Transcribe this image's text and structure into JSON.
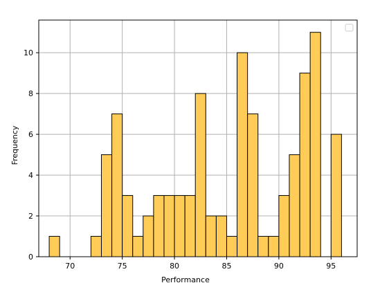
{
  "chart_data": {
    "type": "bar",
    "xlabel": "Performance",
    "ylabel": "Frequency",
    "xlim": [
      67.0,
      97.5
    ],
    "ylim": [
      0,
      11.6
    ],
    "grid": true,
    "legend": "top-right (empty)",
    "xticks": [
      70,
      75,
      80,
      85,
      90,
      95
    ],
    "yticks": [
      0,
      2,
      4,
      6,
      8,
      10
    ],
    "bar_color": "#ffcd57",
    "edge_color": "#000000",
    "bin_edges": [
      68,
      69,
      70,
      71,
      72,
      73,
      74,
      75,
      76,
      77,
      78,
      79,
      80,
      81,
      82,
      83,
      84,
      85,
      86,
      87,
      88,
      89,
      90,
      91,
      92,
      93,
      94,
      95,
      96
    ],
    "values": [
      1,
      0,
      0,
      0,
      1,
      5,
      7,
      3,
      1,
      2,
      3,
      3,
      3,
      3,
      8,
      2,
      2,
      1,
      10,
      7,
      1,
      1,
      3,
      5,
      9,
      11,
      0,
      6
    ]
  }
}
